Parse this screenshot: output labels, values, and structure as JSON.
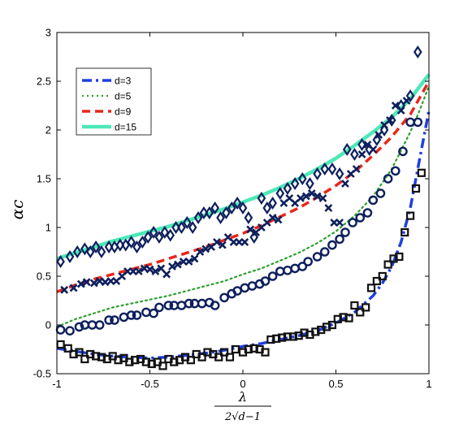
{
  "chart_data": {
    "type": "scatter",
    "xlim": [
      -1,
      1
    ],
    "ylim": [
      -0.5,
      3
    ],
    "xticks": [
      -1,
      -0.5,
      0,
      0.5,
      1
    ],
    "xtick_labels": [
      "-1",
      "-0.5",
      "0",
      "0.5",
      "1"
    ],
    "yticks": [
      -0.5,
      0,
      0.5,
      1,
      1.5,
      2,
      2.5,
      3
    ],
    "ytick_labels": [
      "-0.5",
      "0",
      "0.5",
      "1",
      "1.5",
      "2",
      "2.5",
      "3"
    ],
    "ylabel": "αc",
    "xlabel_num": "λ",
    "xlabel_den": "2√d−1",
    "grid": false,
    "legend_position": "top-left",
    "lines": [
      {
        "name": "d=3",
        "color": "#1f3fe0",
        "style": "dashdot",
        "x": [
          -1,
          -0.9,
          -0.8,
          -0.7,
          -0.6,
          -0.5,
          -0.4,
          -0.3,
          -0.2,
          -0.1,
          0,
          0.1,
          0.2,
          0.3,
          0.4,
          0.5,
          0.6,
          0.7,
          0.75,
          0.8,
          0.85,
          0.9,
          0.95,
          0.98,
          1
        ],
        "y": [
          -0.24,
          -0.27,
          -0.3,
          -0.32,
          -0.33,
          -0.34,
          -0.33,
          -0.31,
          -0.29,
          -0.26,
          -0.22,
          -0.19,
          -0.15,
          -0.11,
          -0.06,
          0.02,
          0.13,
          0.3,
          0.43,
          0.6,
          0.85,
          1.2,
          1.7,
          2.0,
          2.2
        ]
      },
      {
        "name": "d=5",
        "color": "#2ca02c",
        "style": "dotted",
        "x": [
          -1,
          -0.9,
          -0.8,
          -0.7,
          -0.6,
          -0.5,
          -0.4,
          -0.3,
          -0.2,
          -0.1,
          0,
          0.1,
          0.2,
          0.3,
          0.4,
          0.5,
          0.6,
          0.7,
          0.8,
          0.9,
          0.95,
          1
        ],
        "y": [
          -0.02,
          0.06,
          0.12,
          0.18,
          0.22,
          0.26,
          0.3,
          0.35,
          0.4,
          0.45,
          0.52,
          0.58,
          0.66,
          0.74,
          0.84,
          0.96,
          1.12,
          1.32,
          1.6,
          1.98,
          2.2,
          2.45
        ]
      },
      {
        "name": "d=9",
        "color": "#e8261c",
        "style": "dashed",
        "x": [
          -1,
          -0.9,
          -0.8,
          -0.7,
          -0.6,
          -0.5,
          -0.4,
          -0.3,
          -0.2,
          -0.1,
          0,
          0.1,
          0.2,
          0.3,
          0.4,
          0.5,
          0.6,
          0.7,
          0.8,
          0.9,
          1
        ],
        "y": [
          0.34,
          0.41,
          0.47,
          0.52,
          0.57,
          0.62,
          0.68,
          0.74,
          0.8,
          0.87,
          0.94,
          1.02,
          1.11,
          1.2,
          1.31,
          1.43,
          1.57,
          1.74,
          1.93,
          2.16,
          2.5
        ]
      },
      {
        "name": "d=15",
        "color": "#4de8b8",
        "style": "solid",
        "x": [
          -1,
          -0.9,
          -0.8,
          -0.7,
          -0.6,
          -0.5,
          -0.4,
          -0.3,
          -0.2,
          -0.1,
          0,
          0.1,
          0.2,
          0.3,
          0.4,
          0.5,
          0.6,
          0.7,
          0.8,
          0.9,
          1
        ],
        "y": [
          0.68,
          0.74,
          0.8,
          0.86,
          0.91,
          0.96,
          1.01,
          1.07,
          1.13,
          1.19,
          1.26,
          1.33,
          1.41,
          1.5,
          1.6,
          1.71,
          1.84,
          1.98,
          2.13,
          2.32,
          2.57
        ]
      }
    ],
    "scatter": [
      {
        "marker": "square",
        "color": "#111111",
        "x": [
          -0.98,
          -0.94,
          -0.91,
          -0.88,
          -0.85,
          -0.82,
          -0.79,
          -0.76,
          -0.73,
          -0.7,
          -0.67,
          -0.64,
          -0.61,
          -0.58,
          -0.55,
          -0.52,
          -0.49,
          -0.46,
          -0.43,
          -0.4,
          -0.37,
          -0.34,
          -0.31,
          -0.28,
          -0.25,
          -0.22,
          -0.19,
          -0.16,
          -0.13,
          -0.1,
          -0.07,
          -0.04,
          0.0,
          0.03,
          0.06,
          0.09,
          0.12,
          0.15,
          0.18,
          0.21,
          0.24,
          0.27,
          0.3,
          0.33,
          0.36,
          0.39,
          0.42,
          0.45,
          0.48,
          0.51,
          0.54,
          0.57,
          0.6,
          0.63,
          0.66,
          0.69,
          0.72,
          0.75,
          0.78,
          0.81,
          0.84,
          0.87,
          0.9,
          0.93,
          0.96
        ],
        "y": [
          -0.2,
          -0.24,
          -0.3,
          -0.28,
          -0.35,
          -0.3,
          -0.32,
          -0.33,
          -0.35,
          -0.32,
          -0.36,
          -0.34,
          -0.38,
          -0.36,
          -0.35,
          -0.38,
          -0.4,
          -0.38,
          -0.42,
          -0.35,
          -0.38,
          -0.36,
          -0.33,
          -0.36,
          -0.3,
          -0.33,
          -0.28,
          -0.3,
          -0.33,
          -0.28,
          -0.33,
          -0.25,
          -0.28,
          -0.25,
          -0.24,
          -0.25,
          -0.28,
          -0.15,
          -0.14,
          -0.13,
          -0.12,
          -0.12,
          -0.11,
          -0.08,
          -0.1,
          -0.07,
          -0.05,
          -0.02,
          0.0,
          0.06,
          0.08,
          0.07,
          0.2,
          0.13,
          0.18,
          0.38,
          0.45,
          0.5,
          0.62,
          0.68,
          0.7,
          0.95,
          1.12,
          1.4,
          1.56
        ]
      },
      {
        "marker": "circle",
        "color": "#0d1f5c",
        "x": [
          -0.98,
          -0.93,
          -0.88,
          -0.85,
          -0.81,
          -0.77,
          -0.72,
          -0.69,
          -0.64,
          -0.6,
          -0.57,
          -0.52,
          -0.48,
          -0.45,
          -0.4,
          -0.37,
          -0.33,
          -0.29,
          -0.26,
          -0.22,
          -0.18,
          -0.15,
          -0.1,
          -0.06,
          -0.03,
          0.01,
          0.05,
          0.09,
          0.12,
          0.16,
          0.2,
          0.24,
          0.28,
          0.32,
          0.35,
          0.4,
          0.44,
          0.48,
          0.52,
          0.55,
          0.59,
          0.63,
          0.67,
          0.7,
          0.74,
          0.78,
          0.82,
          0.86,
          0.9,
          0.94
        ],
        "y": [
          -0.05,
          -0.06,
          -0.02,
          0.0,
          0.0,
          0.0,
          0.05,
          0.05,
          0.08,
          0.1,
          0.1,
          0.13,
          0.12,
          0.18,
          0.2,
          0.2,
          0.2,
          0.22,
          0.22,
          0.22,
          0.23,
          0.2,
          0.28,
          0.32,
          0.35,
          0.38,
          0.4,
          0.42,
          0.45,
          0.5,
          0.55,
          0.56,
          0.58,
          0.6,
          0.65,
          0.7,
          0.75,
          0.82,
          0.88,
          0.95,
          1.05,
          1.1,
          1.15,
          1.28,
          1.35,
          1.5,
          1.58,
          1.78,
          2.08,
          2.08
        ]
      },
      {
        "marker": "x",
        "color": "#0d1f5c",
        "x": [
          -0.96,
          -0.91,
          -0.87,
          -0.84,
          -0.8,
          -0.77,
          -0.74,
          -0.71,
          -0.68,
          -0.65,
          -0.62,
          -0.59,
          -0.56,
          -0.53,
          -0.5,
          -0.47,
          -0.44,
          -0.41,
          -0.38,
          -0.35,
          -0.32,
          -0.29,
          -0.26,
          -0.23,
          -0.2,
          -0.17,
          -0.14,
          -0.11,
          -0.08,
          -0.05,
          -0.02,
          0.01,
          0.04,
          0.07,
          0.1,
          0.13,
          0.16,
          0.19,
          0.22,
          0.25,
          0.28,
          0.31,
          0.34,
          0.37,
          0.4,
          0.43,
          0.46,
          0.49,
          0.52,
          0.55,
          0.58,
          0.61,
          0.64,
          0.67,
          0.7,
          0.73,
          0.76,
          0.79,
          0.82,
          0.85,
          0.88
        ],
        "y": [
          0.36,
          0.38,
          0.42,
          0.44,
          0.43,
          0.45,
          0.44,
          0.45,
          0.45,
          0.5,
          0.55,
          0.55,
          0.55,
          0.58,
          0.57,
          0.55,
          0.58,
          0.52,
          0.6,
          0.62,
          0.65,
          0.65,
          0.68,
          0.75,
          0.78,
          0.8,
          0.85,
          0.82,
          0.9,
          0.85,
          0.85,
          0.85,
          0.98,
          0.95,
          1.0,
          1.05,
          1.1,
          1.08,
          1.25,
          1.3,
          1.25,
          1.3,
          1.32,
          1.35,
          1.32,
          1.3,
          1.2,
          1.05,
          1.05,
          1.45,
          1.55,
          1.6,
          1.75,
          1.85,
          1.8,
          1.95,
          2.05,
          2.1,
          2.25,
          2.2,
          2.3
        ]
      },
      {
        "marker": "diamond",
        "color": "#0d1f5c",
        "x": [
          -0.98,
          -0.93,
          -0.89,
          -0.85,
          -0.82,
          -0.79,
          -0.76,
          -0.72,
          -0.69,
          -0.66,
          -0.63,
          -0.6,
          -0.57,
          -0.54,
          -0.51,
          -0.48,
          -0.45,
          -0.42,
          -0.39,
          -0.36,
          -0.33,
          -0.3,
          -0.27,
          -0.24,
          -0.21,
          -0.18,
          -0.15,
          -0.12,
          -0.09,
          -0.06,
          -0.03,
          0.0,
          0.03,
          0.06,
          0.1,
          0.13,
          0.16,
          0.2,
          0.24,
          0.28,
          0.32,
          0.36,
          0.4,
          0.44,
          0.48,
          0.52,
          0.56,
          0.6,
          0.64,
          0.68,
          0.72,
          0.76,
          0.8,
          0.85,
          0.9,
          0.94
        ],
        "y": [
          0.65,
          0.7,
          0.75,
          0.78,
          0.75,
          0.8,
          0.75,
          0.8,
          0.8,
          0.82,
          0.82,
          0.85,
          0.8,
          0.85,
          0.9,
          0.95,
          0.9,
          0.95,
          0.92,
          1.0,
          1.0,
          1.05,
          1.0,
          1.1,
          1.15,
          1.15,
          1.2,
          1.1,
          1.15,
          1.2,
          1.25,
          1.2,
          1.1,
          0.9,
          1.3,
          1.2,
          1.25,
          1.35,
          1.4,
          1.45,
          1.5,
          1.45,
          1.55,
          1.6,
          1.6,
          1.55,
          1.8,
          1.75,
          1.85,
          1.8,
          1.9,
          2.0,
          2.1,
          2.25,
          2.35,
          2.8
        ]
      }
    ]
  }
}
